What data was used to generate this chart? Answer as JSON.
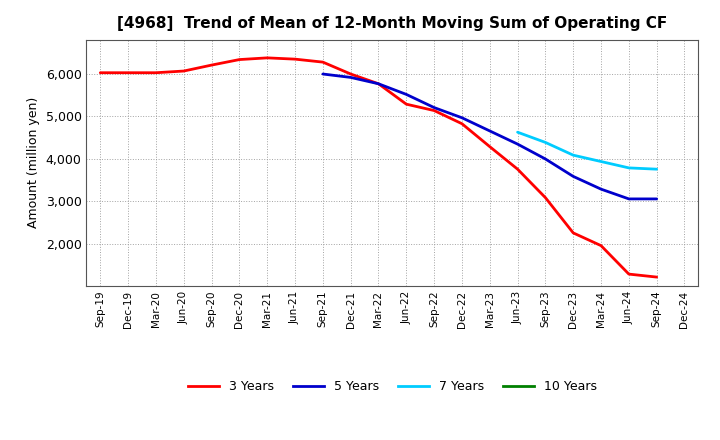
{
  "title": "[4968]  Trend of Mean of 12-Month Moving Sum of Operating CF",
  "ylabel": "Amount (million yen)",
  "background_color": "#ffffff",
  "grid_color": "#999999",
  "yticks": [
    2000,
    3000,
    4000,
    5000,
    6000
  ],
  "ylim": [
    1000,
    6800
  ],
  "x_labels": [
    "Sep-19",
    "Dec-19",
    "Mar-20",
    "Jun-20",
    "Sep-20",
    "Dec-20",
    "Mar-21",
    "Jun-21",
    "Sep-21",
    "Dec-21",
    "Mar-22",
    "Jun-22",
    "Sep-22",
    "Dec-22",
    "Mar-23",
    "Jun-23",
    "Sep-23",
    "Dec-23",
    "Mar-24",
    "Jun-24",
    "Sep-24",
    "Dec-24"
  ],
  "series": {
    "3 Years": {
      "color": "#ff0000",
      "data_x": [
        0,
        1,
        2,
        3,
        4,
        5,
        6,
        7,
        8,
        9,
        10,
        11,
        12,
        13,
        14,
        15,
        16,
        17,
        18,
        19,
        20
      ],
      "data_y": [
        6020,
        6020,
        6020,
        6060,
        6200,
        6330,
        6370,
        6340,
        6270,
        5990,
        5760,
        5280,
        5130,
        4820,
        4280,
        3750,
        3080,
        2250,
        1950,
        1280,
        1210
      ]
    },
    "5 Years": {
      "color": "#0000cc",
      "data_x": [
        8,
        9,
        10,
        11,
        12,
        13,
        14,
        15,
        16,
        17,
        18,
        19,
        20
      ],
      "data_y": [
        5990,
        5910,
        5760,
        5510,
        5200,
        4960,
        4650,
        4340,
        3990,
        3580,
        3280,
        3050,
        3050
      ]
    },
    "7 Years": {
      "color": "#00ccff",
      "data_x": [
        15,
        16,
        17,
        18,
        19,
        20
      ],
      "data_y": [
        4620,
        4380,
        4080,
        3930,
        3780,
        3750
      ]
    },
    "10 Years": {
      "color": "#008000",
      "data_x": [],
      "data_y": []
    }
  },
  "legend_labels": [
    "3 Years",
    "5 Years",
    "7 Years",
    "10 Years"
  ],
  "legend_colors": [
    "#ff0000",
    "#0000cc",
    "#00ccff",
    "#008000"
  ]
}
